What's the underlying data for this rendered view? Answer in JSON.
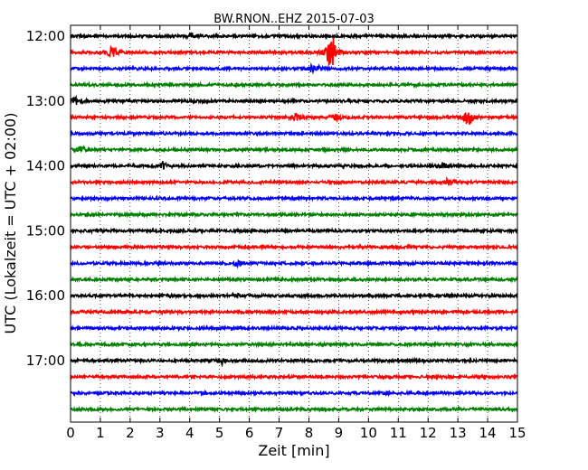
{
  "chart_data": {
    "type": "line",
    "title": "BW.RNON..EHZ 2015-07-03",
    "xlabel": "Zeit  [min]",
    "ylabel": "UTC (Lokalzeit = UTC + 02:00)",
    "xlim": [
      0,
      15
    ],
    "x_ticks": [
      "0",
      "1",
      "2",
      "3",
      "4",
      "5",
      "6",
      "7",
      "8",
      "9",
      "10",
      "11",
      "12",
      "13",
      "14",
      "15"
    ],
    "y_tick_labels": [
      "12:00",
      "13:00",
      "14:00",
      "15:00",
      "16:00",
      "17:00"
    ],
    "grid": "vertical dotted",
    "colors": [
      "#000000",
      "#ff0000",
      "#0000ff",
      "#008000"
    ],
    "series": [
      {
        "start": "12:00",
        "events": [
          {
            "t": 4.1,
            "a": 3
          }
        ]
      },
      {
        "start": "12:15",
        "events": [
          {
            "t": 1.4,
            "a": 7
          },
          {
            "t": 8.75,
            "a": 28
          }
        ]
      },
      {
        "start": "12:30",
        "events": [
          {
            "t": 8.1,
            "a": 4
          },
          {
            "t": 8.4,
            "a": 3
          }
        ]
      },
      {
        "start": "12:45",
        "events": []
      },
      {
        "start": "13:00",
        "events": [
          {
            "t": 0.2,
            "a": 6
          }
        ]
      },
      {
        "start": "13:15",
        "events": [
          {
            "t": 7.6,
            "a": 5
          },
          {
            "t": 8.9,
            "a": 4
          },
          {
            "t": 13.35,
            "a": 12
          }
        ]
      },
      {
        "start": "13:30",
        "events": []
      },
      {
        "start": "13:45",
        "events": [
          {
            "t": 0.4,
            "a": 4
          }
        ]
      },
      {
        "start": "14:00",
        "events": [
          {
            "t": 3.1,
            "a": 4
          },
          {
            "t": 12.5,
            "a": 3
          }
        ]
      },
      {
        "start": "14:15",
        "events": [
          {
            "t": 12.7,
            "a": 5
          }
        ]
      },
      {
        "start": "14:30",
        "events": []
      },
      {
        "start": "14:45",
        "events": []
      },
      {
        "start": "15:00",
        "events": []
      },
      {
        "start": "15:15",
        "events": []
      },
      {
        "start": "15:30",
        "events": [
          {
            "t": 5.6,
            "a": 3
          }
        ]
      },
      {
        "start": "15:45",
        "events": []
      },
      {
        "start": "16:00",
        "events": [
          {
            "t": 5.6,
            "a": 2
          }
        ]
      },
      {
        "start": "16:15",
        "events": []
      },
      {
        "start": "16:30",
        "events": []
      },
      {
        "start": "16:45",
        "events": []
      },
      {
        "start": "17:00",
        "events": [
          {
            "t": 5.1,
            "a": 4
          }
        ]
      },
      {
        "start": "17:15",
        "events": []
      },
      {
        "start": "17:30",
        "events": []
      },
      {
        "start": "17:45",
        "events": []
      }
    ]
  }
}
